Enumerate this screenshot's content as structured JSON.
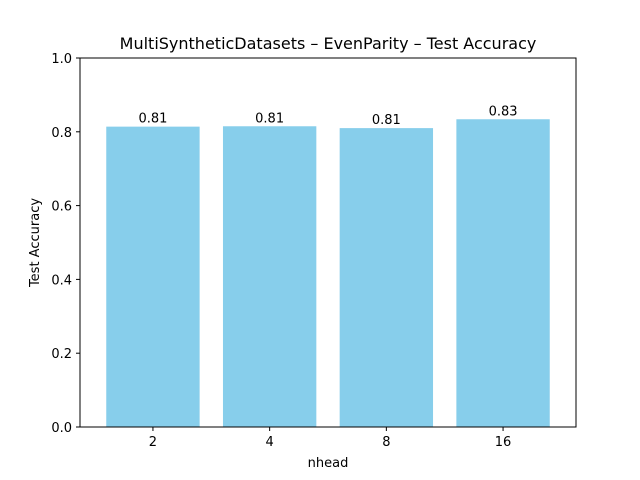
{
  "chart_data": {
    "type": "bar",
    "title": "MultiSyntheticDatasets – EvenParity – Test Accuracy",
    "xlabel": "nhead",
    "ylabel": "Test Accuracy",
    "categories": [
      "2",
      "4",
      "8",
      "16"
    ],
    "values": [
      0.814,
      0.815,
      0.81,
      0.834
    ],
    "data_labels": [
      "0.81",
      "0.81",
      "0.81",
      "0.83"
    ],
    "ylim": [
      0,
      1.0
    ],
    "yticks": [
      0.0,
      0.2,
      0.4,
      0.6,
      0.8,
      1.0
    ],
    "ytick_labels": [
      "0.0",
      "0.2",
      "0.4",
      "0.6",
      "0.8",
      "1.0"
    ],
    "bar_color": "#87CEEB",
    "grid": false,
    "legend": "none"
  }
}
